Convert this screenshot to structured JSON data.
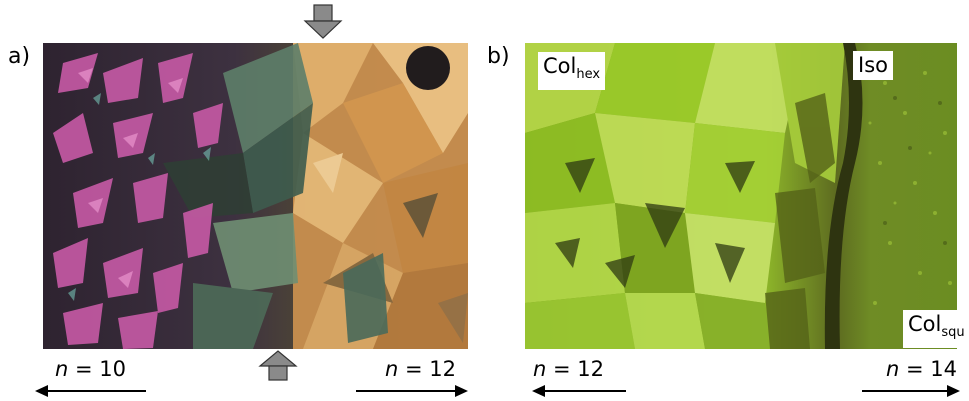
{
  "panel_a": {
    "letter": "a)",
    "left_label": {
      "var": "n",
      "rest": " = 10"
    },
    "right_label": {
      "var": "n",
      "rest": " = 12"
    }
  },
  "panel_b": {
    "letter": "b)",
    "tag_hex": {
      "base": "Col",
      "sub": "hex"
    },
    "tag_iso": "Iso",
    "tag_squ": {
      "base": "Col",
      "sub": "squ"
    },
    "left_label": {
      "var": "n",
      "rest": " = 12"
    },
    "right_label": {
      "var": "n",
      "rest": " = 14"
    }
  },
  "colors": {
    "magenta_crystal": "#c75aa6",
    "orange_crystal": "#d8a25e",
    "green_crystal": "#9ccc2a",
    "dark_background": "#3a2d3a",
    "arrow_grey": "#8a8a8a"
  },
  "icons": {
    "top_marker": "down-arrow-icon",
    "bottom_marker": "up-arrow-icon",
    "direction": "horizontal-arrow-icon"
  }
}
